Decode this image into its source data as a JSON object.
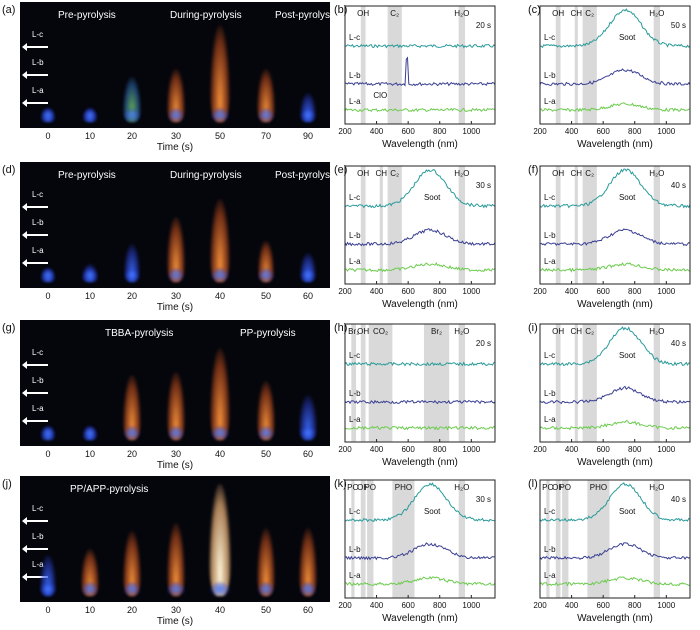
{
  "rows": [
    {
      "photo_label": "(a)",
      "phases": [
        "Pre-pyrolysis",
        "During-pyrolysis",
        "Post-pyrolysis"
      ],
      "times": [
        "0",
        "10",
        "20",
        "30",
        "50",
        "70",
        "90"
      ],
      "flames": [
        {
          "h": 0.1,
          "hue": "blue"
        },
        {
          "h": 0.12,
          "hue": "blue"
        },
        {
          "h": 0.38,
          "hue": "green"
        },
        {
          "h": 0.45,
          "hue": "orange"
        },
        {
          "h": 0.82,
          "hue": "orange"
        },
        {
          "h": 0.45,
          "hue": "orange"
        },
        {
          "h": 0.25,
          "hue": "blue"
        }
      ],
      "mid_label": "(b)",
      "mid_time": "20 s",
      "mid_bands": [
        "OH",
        "C₂",
        "H₂O"
      ],
      "mid_extra": "ClO",
      "right_label": "(c)",
      "right_time": "50 s",
      "right_bands": [
        "OH",
        "CH",
        "C₂",
        "H₂O"
      ],
      "right_extra": "Soot"
    },
    {
      "photo_label": "(d)",
      "phases": [
        "Pre-pyrolysis",
        "During-pyrolysis",
        "Post-pyrolysis"
      ],
      "times": [
        "0",
        "10",
        "20",
        "30",
        "40",
        "50",
        "60"
      ],
      "flames": [
        {
          "h": 0.1,
          "hue": "blue"
        },
        {
          "h": 0.15,
          "hue": "blue"
        },
        {
          "h": 0.32,
          "hue": "blue"
        },
        {
          "h": 0.55,
          "hue": "orange"
        },
        {
          "h": 0.7,
          "hue": "orange"
        },
        {
          "h": 0.35,
          "hue": "orange"
        },
        {
          "h": 0.25,
          "hue": "blue"
        }
      ],
      "mid_label": "(e)",
      "mid_time": "30 s",
      "mid_bands": [
        "OH",
        "CH",
        "C₂",
        "H₂O"
      ],
      "mid_extra": "Soot",
      "right_label": "(f)",
      "right_time": "40 s",
      "right_bands": [
        "OH",
        "CH",
        "C₂",
        "H₂O"
      ],
      "right_extra": "Soot"
    },
    {
      "photo_label": "(g)",
      "phases": [
        "TBBA-pyrolysis",
        "PP-pyrolysis"
      ],
      "times": [
        "0",
        "10",
        "20",
        "30",
        "40",
        "50",
        "60"
      ],
      "flames": [
        {
          "h": 0.08,
          "hue": "blue"
        },
        {
          "h": 0.1,
          "hue": "blue"
        },
        {
          "h": 0.55,
          "hue": "orange"
        },
        {
          "h": 0.58,
          "hue": "orange"
        },
        {
          "h": 0.78,
          "hue": "orange"
        },
        {
          "h": 0.5,
          "hue": "orange"
        },
        {
          "h": 0.38,
          "hue": "blue"
        }
      ],
      "mid_label": "(h)",
      "mid_time": "20 s",
      "mid_bands": [
        "Br₂",
        "OH",
        "CO₂",
        "Br₂",
        "H₂O"
      ],
      "mid_extra": "",
      "right_label": "(i)",
      "right_time": "40 s",
      "right_bands": [
        "OH",
        "CH",
        "C₂",
        "H₂O"
      ],
      "right_extra": "Soot"
    },
    {
      "photo_label": "(j)",
      "phases": [
        "PP/APP-pyrolysis"
      ],
      "times": [
        "0",
        "10",
        "20",
        "30",
        "40",
        "50",
        "60"
      ],
      "flames": [
        {
          "h": 0.35,
          "hue": "blue"
        },
        {
          "h": 0.4,
          "hue": "orange"
        },
        {
          "h": 0.55,
          "hue": "orange"
        },
        {
          "h": 0.62,
          "hue": "orange"
        },
        {
          "h": 0.95,
          "hue": "white"
        },
        {
          "h": 0.58,
          "hue": "orange"
        },
        {
          "h": 0.58,
          "hue": "orange"
        }
      ],
      "mid_label": "(k)",
      "mid_time": "30 s",
      "mid_bands": [
        "PO",
        "OH",
        "PO",
        "PHO",
        "H₂O"
      ],
      "mid_extra": "Soot",
      "right_label": "(l)",
      "right_time": "40 s",
      "right_bands": [
        "PO",
        "OH",
        "PO",
        "PHO",
        "H₂O"
      ],
      "right_extra": "Soot"
    }
  ],
  "levels": [
    "L-c",
    "L-b",
    "L-a"
  ],
  "time_axis_title": "Time (s)",
  "wavelength_axis_title": "Wavelength (nm)",
  "wavelength_ticks": [
    "200",
    "400",
    "600",
    "800",
    "1000"
  ],
  "colors": {
    "L-c": "#2a9a9a",
    "L-b": "#3a3f93",
    "L-a": "#6ccb4e",
    "band": "#d9d9d9"
  }
}
